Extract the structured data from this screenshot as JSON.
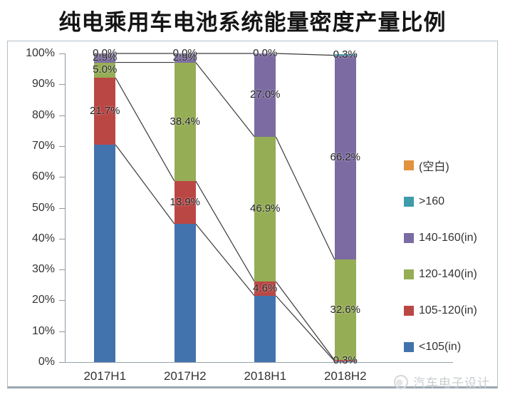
{
  "title": "纯电乘用车电池系统能量密度产量比例",
  "watermark": {
    "text": "汽车电子设计"
  },
  "axis": {
    "y_ticks": [
      "100%",
      "90%",
      "80%",
      "70%",
      "60%",
      "50%",
      "40%",
      "30%",
      "20%",
      "10%",
      "0%"
    ]
  },
  "chart_data": {
    "type": "bar",
    "subtype": "percent-stacked-column",
    "title": "纯电乘用车电池系统能量密度产量比例",
    "categories": [
      "2017H1",
      "2017H2",
      "2018H1",
      "2018H2"
    ],
    "ylim": [
      0,
      100
    ],
    "y_tick_step": 10,
    "grid": false,
    "legend_position": "right",
    "series_lines": true,
    "series": [
      {
        "name": "<105(in)",
        "color": "#4273ad",
        "values": [
          70.4,
          44.8,
          21.5,
          0.3
        ],
        "labels": [
          "",
          "",
          "",
          ""
        ]
      },
      {
        "name": "105-120(in)",
        "color": "#bb4745",
        "values": [
          21.7,
          13.9,
          4.6,
          0.3
        ],
        "labels": [
          "21.7%",
          "13.9%",
          "4.6%",
          "0.3%"
        ]
      },
      {
        "name": "120-140(in)",
        "color": "#95ad55",
        "values": [
          5.0,
          38.4,
          46.9,
          32.6
        ],
        "labels": [
          "5.0%",
          "38.4%",
          "46.9%",
          "32.6%"
        ]
      },
      {
        "name": "140-160(in)",
        "color": "#7b6ba2",
        "values": [
          2.9,
          2.9,
          27.0,
          66.2
        ],
        "labels": [
          "2.9%",
          "2.9%",
          "27.0%",
          "66.2%"
        ]
      },
      {
        "name": ">160",
        "color": "#3f9bab",
        "values": [
          0.0,
          0.0,
          0.0,
          0.3
        ],
        "labels": [
          "0.0%",
          "0.0%",
          "0.0%",
          "0.3%"
        ]
      },
      {
        "name": "(空白)",
        "color": "#e2923e",
        "values": [
          0.0,
          0.0,
          0.0,
          0.0
        ],
        "labels": [
          "",
          "",
          "",
          ""
        ]
      }
    ],
    "legend": [
      {
        "label": "(空白)",
        "color": "#e2923e"
      },
      {
        "label": ">160",
        "color": "#3f9bab"
      },
      {
        "label": "140-160(in)",
        "color": "#7b6ba2"
      },
      {
        "label": "120-140(in)",
        "color": "#95ad55"
      },
      {
        "label": "105-120(in)",
        "color": "#bb4745"
      },
      {
        "label": "<105(in)",
        "color": "#4273ad"
      }
    ]
  }
}
